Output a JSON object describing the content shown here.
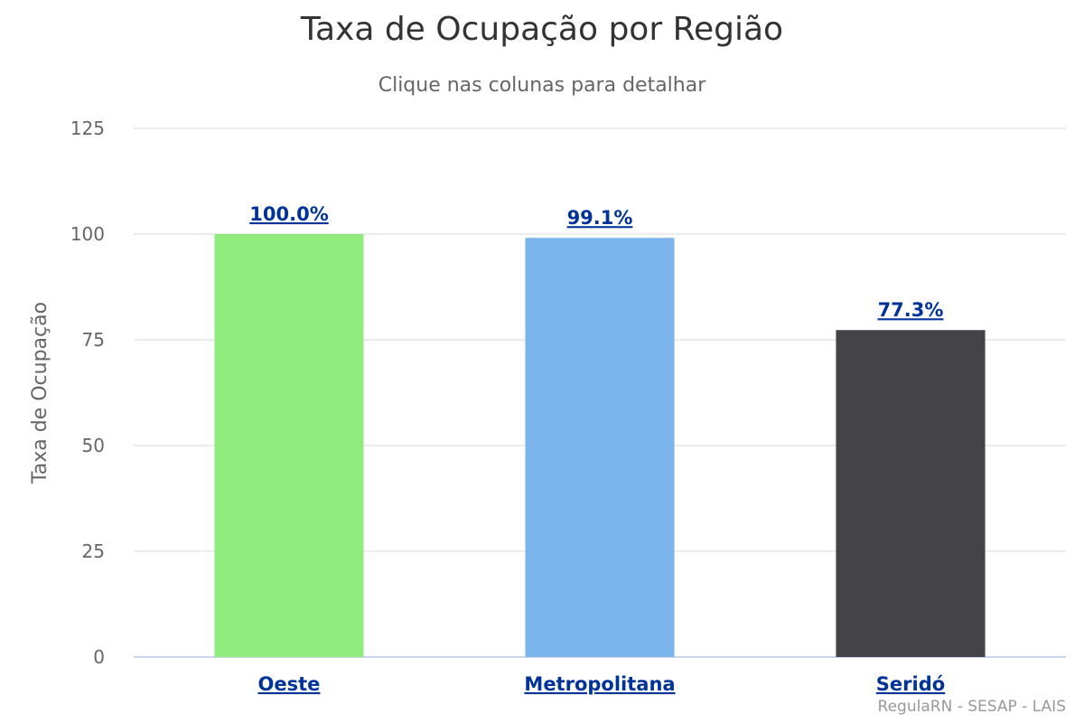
{
  "chart_data": {
    "type": "bar",
    "title": "Taxa de Ocupação por Região",
    "subtitle": "Clique nas colunas para detalhar",
    "ylabel": "Taxa de Ocupação",
    "xlabel": "",
    "categories": [
      "Oeste",
      "Metropolitana",
      "Seridó"
    ],
    "values": [
      100.0,
      99.1,
      77.3
    ],
    "data_labels": [
      "100.0%",
      "99.1%",
      "77.3%"
    ],
    "colors": [
      "#90ed7d",
      "#7cb5ec",
      "#434348"
    ],
    "ylim": [
      0,
      125
    ],
    "yticks": [
      "0",
      "25",
      "50",
      "75",
      "100",
      "125"
    ],
    "grid": true,
    "legend": "none",
    "credits": "RegulaRN - SESAP - LAIS"
  }
}
